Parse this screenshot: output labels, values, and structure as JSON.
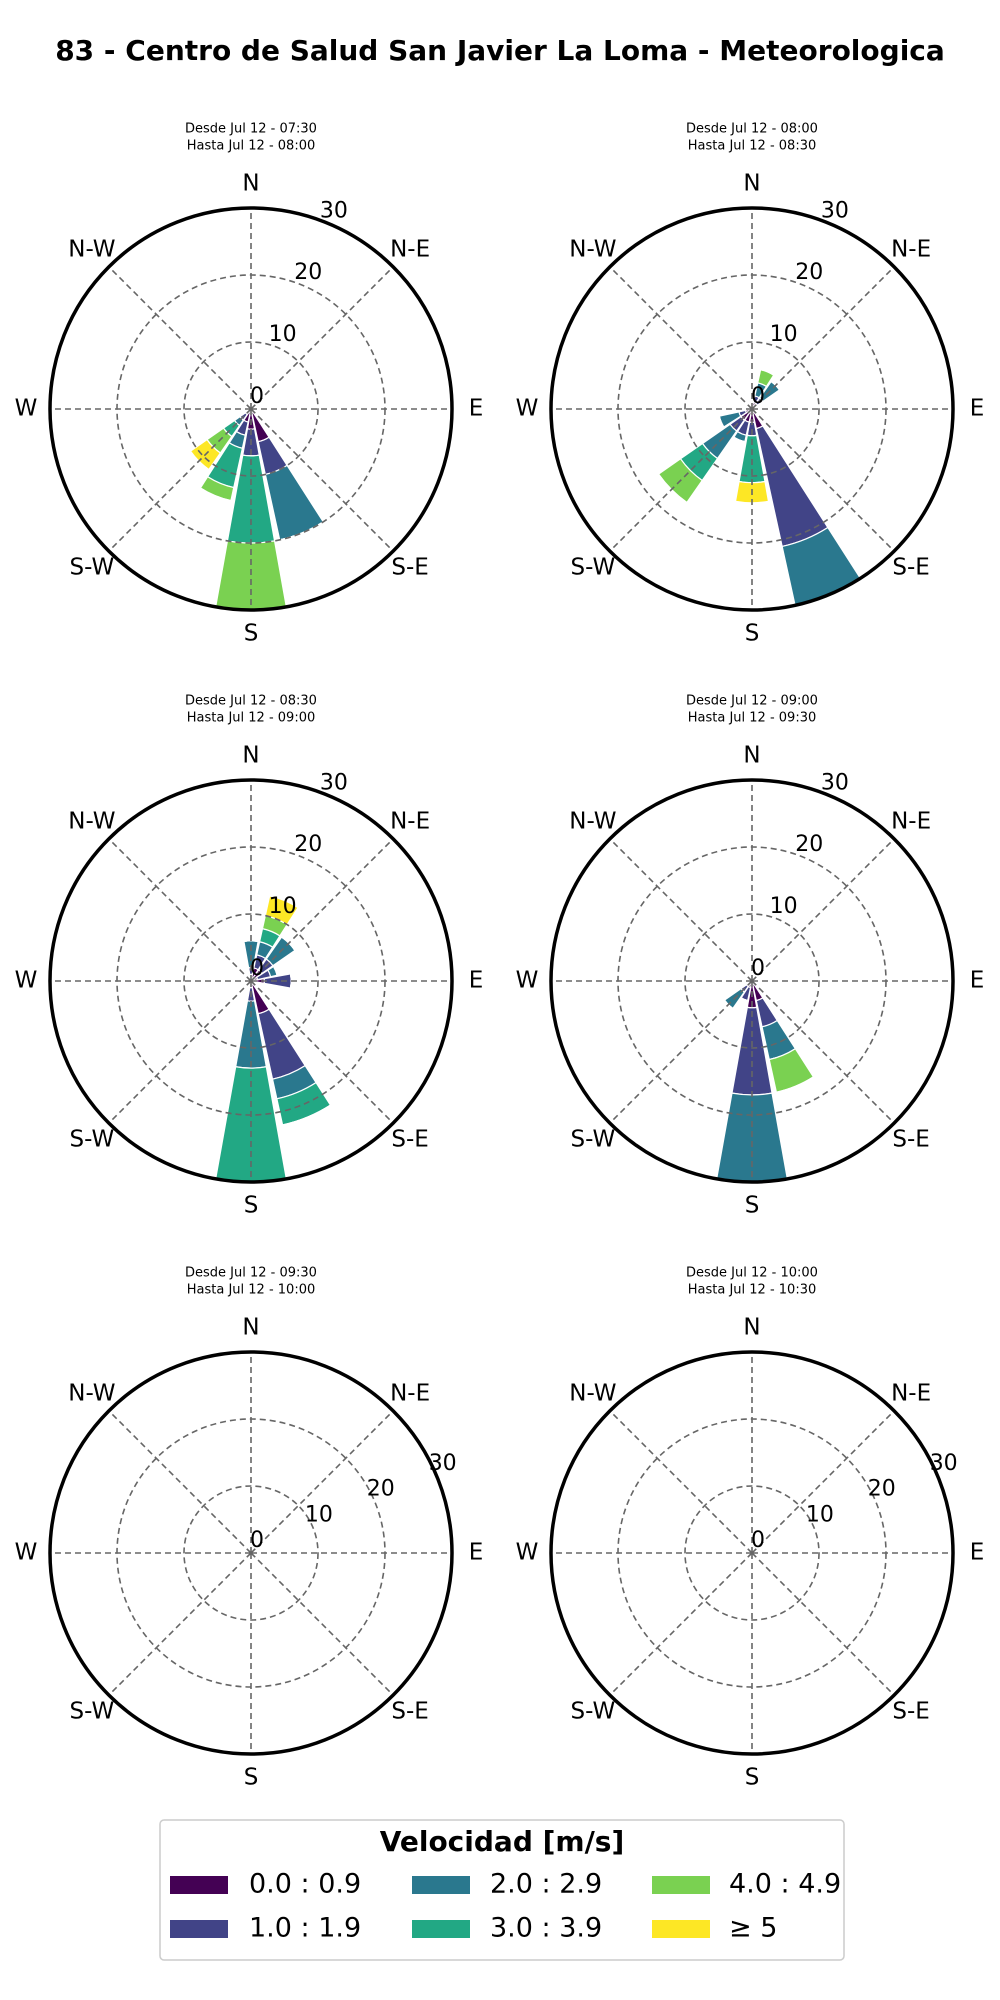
{
  "page_title": "83 - Centro de Salud San Javier La Loma - Meteorologica",
  "legend": {
    "title": "Velocidad [m/s]",
    "series": [
      {
        "name": "0.0 : 0.9",
        "color": "#440154"
      },
      {
        "name": "1.0 : 1.9",
        "color": "#414487"
      },
      {
        "name": "2.0 : 2.9",
        "color": "#2a788e"
      },
      {
        "name": "3.0 : 3.9",
        "color": "#22a884"
      },
      {
        "name": "4.0 : 4.9",
        "color": "#7ad151"
      },
      {
        "name": "≥ 5",
        "color": "#fde725"
      }
    ]
  },
  "chart_data": [
    {
      "type": "windrose",
      "title": "Desde Jul 12 - 07:30",
      "subtitle": "Hasta Jul 12 - 08:00",
      "categories": [
        "N",
        null,
        "N-E",
        null,
        "E",
        null,
        "S-E",
        null,
        "S",
        null,
        "S-W",
        null,
        "W",
        null,
        "N-W",
        null
      ],
      "rlim": [
        0,
        30
      ],
      "rticks": [
        0,
        10,
        20,
        30
      ],
      "rlabel_position": 22.5,
      "grid": true,
      "series": [
        {
          "values": [
            0,
            0,
            0,
            0,
            0,
            0,
            0,
            5,
            3,
            2,
            1,
            0,
            0,
            0,
            0,
            0
          ]
        },
        {
          "values": [
            0,
            0,
            0,
            0,
            0,
            0,
            0,
            5,
            4,
            2,
            1,
            0,
            0,
            0,
            0,
            0
          ]
        },
        {
          "values": [
            0,
            0,
            0,
            0,
            0,
            0,
            0,
            10,
            0,
            2,
            1,
            0,
            0,
            0,
            0,
            0
          ]
        },
        {
          "values": [
            0,
            0,
            0,
            0,
            0,
            0,
            0,
            0,
            13,
            6,
            2,
            0,
            0,
            0,
            0,
            0
          ]
        },
        {
          "values": [
            0,
            0,
            0,
            0,
            0,
            0,
            0,
            0,
            10,
            2,
            3,
            0,
            0,
            0,
            0,
            0
          ]
        },
        {
          "values": [
            0,
            0,
            0,
            0,
            0,
            0,
            0,
            0,
            0,
            0,
            3,
            0,
            0,
            0,
            0,
            0
          ]
        }
      ]
    },
    {
      "type": "windrose",
      "title": "Desde Jul 12 - 08:00",
      "subtitle": "Hasta Jul 12 - 08:30",
      "categories": [
        "N",
        null,
        "N-E",
        null,
        "E",
        null,
        "S-E",
        null,
        "S",
        null,
        "S-W",
        null,
        "W",
        null,
        "N-W",
        null
      ],
      "rlim": [
        0,
        30
      ],
      "rticks": [
        0,
        10,
        20,
        30
      ],
      "rlabel_position": 22.5,
      "grid": true,
      "series": [
        {
          "values": [
            0,
            1,
            1,
            0,
            0,
            0,
            0,
            3,
            2,
            2,
            2,
            1,
            0,
            0,
            0,
            0
          ]
        },
        {
          "values": [
            0,
            1,
            1,
            0,
            0,
            0,
            0,
            18,
            2,
            2,
            2,
            1,
            0,
            0,
            0,
            0
          ]
        },
        {
          "values": [
            0,
            2,
            3,
            0,
            0,
            0,
            0,
            9,
            0,
            1,
            5,
            3,
            0,
            0,
            0,
            0
          ]
        },
        {
          "values": [
            0,
            0,
            0,
            0,
            0,
            0,
            0,
            0,
            7,
            0,
            4,
            0,
            0,
            0,
            0,
            0
          ]
        },
        {
          "values": [
            0,
            2,
            0,
            0,
            0,
            0,
            0,
            0,
            0,
            0,
            4,
            0,
            0,
            0,
            0,
            0
          ]
        },
        {
          "values": [
            0,
            0,
            0,
            0,
            0,
            0,
            0,
            0,
            3,
            0,
            0,
            0,
            0,
            0,
            0,
            0
          ]
        }
      ]
    },
    {
      "type": "windrose",
      "title": "Desde Jul 12 - 08:30",
      "subtitle": "Hasta Jul 12 - 09:00",
      "categories": [
        "N",
        null,
        "N-E",
        null,
        "E",
        null,
        "S-E",
        null,
        "S",
        null,
        "S-W",
        null,
        "W",
        null,
        "N-W",
        null
      ],
      "rlim": [
        0,
        30
      ],
      "rticks": [
        0,
        10,
        20,
        30
      ],
      "rlabel_position": 22.5,
      "grid": true,
      "series": [
        {
          "values": [
            1,
            2,
            2,
            1,
            2,
            0,
            0,
            5,
            1,
            0,
            0,
            0,
            0,
            0,
            0,
            0
          ]
        },
        {
          "values": [
            1,
            2,
            2,
            2,
            4,
            0,
            0,
            10,
            2,
            0,
            0,
            0,
            0,
            0,
            0,
            0
          ]
        },
        {
          "values": [
            4,
            2,
            4,
            1,
            0,
            0,
            0,
            3,
            10,
            0,
            0,
            0,
            0,
            0,
            0,
            0
          ]
        },
        {
          "values": [
            0,
            2,
            0,
            0,
            0,
            0,
            0,
            4,
            17,
            0,
            0,
            0,
            0,
            0,
            0,
            0
          ]
        },
        {
          "values": [
            0,
            2,
            0,
            0,
            0,
            0,
            0,
            0,
            0,
            0,
            0,
            0,
            0,
            0,
            0,
            0
          ]
        },
        {
          "values": [
            0,
            3,
            0,
            0,
            0,
            0,
            0,
            0,
            0,
            0,
            0,
            0,
            0,
            0,
            0,
            0
          ]
        }
      ]
    },
    {
      "type": "windrose",
      "title": "Desde Jul 12 - 09:00",
      "subtitle": "Hasta Jul 12 - 09:30",
      "categories": [
        "N",
        null,
        "N-E",
        null,
        "E",
        null,
        "S-E",
        null,
        "S",
        null,
        "S-W",
        null,
        "W",
        null,
        "N-W",
        null
      ],
      "rlim": [
        0,
        30
      ],
      "rticks": [
        0,
        10,
        20,
        30
      ],
      "rlabel_position": 22.5,
      "grid": true,
      "series": [
        {
          "values": [
            0,
            0,
            0,
            0,
            0,
            0,
            0,
            3,
            4,
            1,
            1,
            0,
            0,
            0,
            0,
            0
          ]
        },
        {
          "values": [
            0,
            0,
            0,
            0,
            0,
            0,
            0,
            4,
            13,
            2,
            1,
            0,
            0,
            0,
            0,
            0
          ]
        },
        {
          "values": [
            0,
            0,
            0,
            0,
            0,
            0,
            0,
            5,
            13,
            0,
            3,
            0,
            0,
            0,
            0,
            0
          ]
        },
        {
          "values": [
            0,
            0,
            0,
            0,
            0,
            0,
            0,
            0,
            0,
            0,
            0,
            0,
            0,
            0,
            0,
            0
          ]
        },
        {
          "values": [
            0,
            0,
            0,
            0,
            0,
            0,
            0,
            5,
            0,
            0,
            0,
            0,
            0,
            0,
            0,
            0
          ]
        },
        {
          "values": [
            0,
            0,
            0,
            0,
            0,
            0,
            0,
            0,
            0,
            0,
            0,
            0,
            0,
            0,
            0,
            0
          ]
        }
      ]
    },
    {
      "type": "windrose",
      "title": "Desde Jul 12 - 09:30",
      "subtitle": "Hasta Jul 12 - 10:00",
      "categories": [
        "N",
        null,
        "N-E",
        null,
        "E",
        null,
        "S-E",
        null,
        "S",
        null,
        "S-W",
        null,
        "W",
        null,
        "N-W",
        null
      ],
      "rlim": [
        0,
        30
      ],
      "rticks": [
        0,
        10,
        20,
        30
      ],
      "rlabel_position": 67.5,
      "grid": true,
      "series": [
        {
          "values": [
            0,
            0,
            0,
            0,
            0,
            0,
            0,
            0,
            0,
            0,
            0,
            0,
            0,
            0,
            0,
            0
          ]
        },
        {
          "values": [
            0,
            0,
            0,
            0,
            0,
            0,
            0,
            0,
            0,
            0,
            0,
            0,
            0,
            0,
            0,
            0
          ]
        },
        {
          "values": [
            0,
            0,
            0,
            0,
            0,
            0,
            0,
            0,
            0,
            0,
            0,
            0,
            0,
            0,
            0,
            0
          ]
        },
        {
          "values": [
            0,
            0,
            0,
            0,
            0,
            0,
            0,
            0,
            0,
            0,
            0,
            0,
            0,
            0,
            0,
            0
          ]
        },
        {
          "values": [
            0,
            0,
            0,
            0,
            0,
            0,
            0,
            0,
            0,
            0,
            0,
            0,
            0,
            0,
            0,
            0
          ]
        },
        {
          "values": [
            0,
            0,
            0,
            0,
            0,
            0,
            0,
            0,
            0,
            0,
            0,
            0,
            0,
            0,
            0,
            0
          ]
        }
      ]
    },
    {
      "type": "windrose",
      "title": "Desde Jul 12 - 10:00",
      "subtitle": "Hasta Jul 12 - 10:30",
      "categories": [
        "N",
        null,
        "N-E",
        null,
        "E",
        null,
        "S-E",
        null,
        "S",
        null,
        "S-W",
        null,
        "W",
        null,
        "N-W",
        null
      ],
      "rlim": [
        0,
        30
      ],
      "rticks": [
        0,
        10,
        20,
        30
      ],
      "rlabel_position": 67.5,
      "grid": true,
      "series": [
        {
          "values": [
            0,
            0,
            0,
            0,
            0,
            0,
            0,
            0,
            0,
            0,
            0,
            0,
            0,
            0,
            0,
            0
          ]
        },
        {
          "values": [
            0,
            0,
            0,
            0,
            0,
            0,
            0,
            0,
            0,
            0,
            0,
            0,
            0,
            0,
            0,
            0
          ]
        },
        {
          "values": [
            0,
            0,
            0,
            0,
            0,
            0,
            0,
            0,
            0,
            0,
            0,
            0,
            0,
            0,
            0,
            0
          ]
        },
        {
          "values": [
            0,
            0,
            0,
            0,
            0,
            0,
            0,
            0,
            0,
            0,
            0,
            0,
            0,
            0,
            0,
            0
          ]
        },
        {
          "values": [
            0,
            0,
            0,
            0,
            0,
            0,
            0,
            0,
            0,
            0,
            0,
            0,
            0,
            0,
            0,
            0
          ]
        },
        {
          "values": [
            0,
            0,
            0,
            0,
            0,
            0,
            0,
            0,
            0,
            0,
            0,
            0,
            0,
            0,
            0,
            0
          ]
        }
      ]
    }
  ]
}
